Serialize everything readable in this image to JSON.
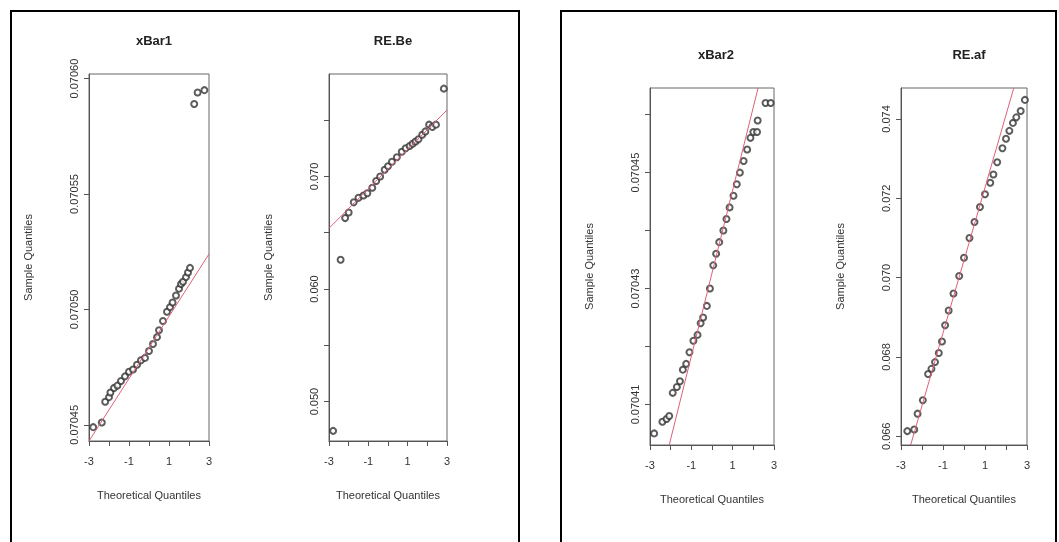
{
  "chart_data": [
    {
      "type": "scatter",
      "title": "xBar1",
      "xlabel": "Theoretical Quantiles",
      "ylabel": "Sample Quantiles",
      "grid": false,
      "xlim": [
        -3,
        3
      ],
      "xticks": [
        -3,
        {
          "value": -2,
          "label": null
        },
        -1,
        {
          "value": 0,
          "label": null
        },
        1,
        {
          "value": 2,
          "label": null
        },
        3
      ],
      "ylim": [
        0.070443,
        0.070602
      ],
      "yticks": [
        0.07045,
        {
          "value": 0.0705,
          "label": "0.07050"
        },
        0.07055,
        {
          "value": 0.0706,
          "label": "0.07060"
        }
      ],
      "series": [
        {
          "marker": "circle",
          "color": "#333333",
          "x": [
            -2.79,
            -2.36,
            -2.19,
            -2.0,
            -1.93,
            -1.75,
            -1.58,
            -1.4,
            -1.2,
            -1.0,
            -0.8,
            -0.6,
            -0.4,
            -0.2,
            0,
            0.2,
            0.4,
            0.5,
            0.7,
            0.9,
            1.05,
            1.18,
            1.35,
            1.5,
            1.6,
            1.7,
            1.85,
            1.95,
            2.05,
            2.26,
            2.43,
            2.77
          ],
          "values": [
            0.070449,
            0.070451,
            0.07046,
            0.070462,
            0.070464,
            0.070466,
            0.070467,
            0.070469,
            0.070471,
            0.070473,
            0.070474,
            0.070476,
            0.070478,
            0.070479,
            0.070482,
            0.070485,
            0.070488,
            0.070491,
            0.070495,
            0.070499,
            0.070501,
            0.070503,
            0.070506,
            0.070509,
            0.070511,
            0.070512,
            0.070514,
            0.070516,
            0.070518,
            0.070589,
            0.070594,
            0.070595
          ]
        },
        {
          "type": "line",
          "marker": "none",
          "color": "#e0607a",
          "x": [
            -3,
            3
          ],
          "values": [
            0.070443,
            0.070524
          ]
        }
      ]
    },
    {
      "type": "scatter",
      "title": "RE.Be",
      "xlabel": "Theoretical Quantiles",
      "ylabel": "Sample Quantiles",
      "grid": false,
      "xlim": [
        -3,
        3
      ],
      "xticks": [
        -3,
        {
          "value": -2,
          "label": null
        },
        -1,
        {
          "value": 0,
          "label": null
        },
        1,
        {
          "value": 2,
          "label": null
        },
        3
      ],
      "ylim": [
        0.0465,
        0.0791
      ],
      "yticks": [
        {
          "value": 0.05,
          "label": "0.050"
        },
        {
          "value": 0.055,
          "label": null
        },
        {
          "value": 0.06,
          "label": "0.060"
        },
        {
          "value": 0.065,
          "label": null
        },
        {
          "value": 0.07,
          "label": "0.070"
        },
        {
          "value": 0.075,
          "label": null
        }
      ],
      "series": [
        {
          "marker": "circle",
          "color": "#333333",
          "x": [
            -2.79,
            -2.41,
            -2.18,
            -2.0,
            -1.74,
            -1.5,
            -1.25,
            -1.05,
            -0.8,
            -0.6,
            -0.4,
            -0.17,
            0,
            0.2,
            0.45,
            0.7,
            0.9,
            1.1,
            1.25,
            1.4,
            1.55,
            1.74,
            1.9,
            2.09,
            2.25,
            2.44,
            2.84
          ],
          "values": [
            0.0474,
            0.0626,
            0.0663,
            0.0668,
            0.0677,
            0.0681,
            0.0683,
            0.0685,
            0.069,
            0.0696,
            0.07,
            0.0706,
            0.0709,
            0.0713,
            0.0717,
            0.0722,
            0.0725,
            0.0727,
            0.0729,
            0.0731,
            0.0733,
            0.0737,
            0.074,
            0.0746,
            0.0744,
            0.0746,
            0.0778
          ]
        },
        {
          "type": "line",
          "marker": "none",
          "color": "#e0607a",
          "x": [
            -3,
            3
          ],
          "values": [
            0.0654,
            0.0759
          ]
        }
      ]
    },
    {
      "type": "scatter",
      "title": "xBar2",
      "xlabel": "Theoretical Quantiles",
      "ylabel": "Sample Quantiles",
      "grid": false,
      "xlim": [
        -3,
        3
      ],
      "xticks": [
        -3,
        {
          "value": -2,
          "label": null
        },
        -1,
        {
          "value": 0,
          "label": null
        },
        1,
        {
          "value": 2,
          "label": null
        },
        3
      ],
      "ylim": [
        0.070403,
        0.0704646
      ],
      "yticks": [
        {
          "value": 0.07041,
          "label": "0.07041"
        },
        {
          "value": 0.07042,
          "label": null
        },
        {
          "value": 0.07043,
          "label": "0.07043"
        },
        {
          "value": 0.07044,
          "label": null
        },
        {
          "value": 0.07045,
          "label": "0.07045"
        },
        {
          "value": 0.07046,
          "label": null
        }
      ],
      "series": [
        {
          "marker": "circle",
          "color": "#333333",
          "x": [
            -2.8,
            -2.4,
            -2.2,
            -2.07,
            -1.9,
            -1.7,
            -1.55,
            -1.41,
            -1.25,
            -1.09,
            -0.9,
            -0.7,
            -0.55,
            -0.43,
            -0.25,
            -0.1,
            0.06,
            0.2,
            0.35,
            0.55,
            0.7,
            0.85,
            1.04,
            1.2,
            1.35,
            1.53,
            1.7,
            1.86,
            2.0,
            2.18,
            2.21,
            2.59,
            2.84
          ],
          "values": [
            0.070405,
            0.070407,
            0.0704075,
            0.070408,
            0.070412,
            0.070413,
            0.070414,
            0.070416,
            0.070417,
            0.070419,
            0.070421,
            0.070422,
            0.070424,
            0.070425,
            0.070427,
            0.07043,
            0.070434,
            0.070436,
            0.070438,
            0.07044,
            0.070442,
            0.070444,
            0.070446,
            0.070448,
            0.07045,
            0.070452,
            0.070454,
            0.070456,
            0.070457,
            0.070457,
            0.070459,
            0.070462,
            0.070462
          ]
        },
        {
          "type": "line",
          "marker": "none",
          "color": "#e0607a",
          "x": [
            -2.07,
            2.23
          ],
          "values": [
            0.070403,
            0.0704646
          ]
        }
      ]
    },
    {
      "type": "scatter",
      "title": "RE.af",
      "xlabel": "Theoretical Quantiles",
      "ylabel": "Sample Quantiles",
      "grid": false,
      "xlim": [
        -3,
        3
      ],
      "xticks": [
        -3,
        {
          "value": -2,
          "label": null
        },
        -1,
        {
          "value": 0,
          "label": null
        },
        1,
        {
          "value": 2,
          "label": null
        },
        3
      ],
      "ylim": [
        0.06578,
        0.07478
      ],
      "yticks": [
        {
          "value": 0.066,
          "label": "0.066"
        },
        {
          "value": 0.068,
          "label": "0.068"
        },
        {
          "value": 0.07,
          "label": "0.070"
        },
        {
          "value": 0.072,
          "label": "0.072"
        },
        {
          "value": 0.074,
          "label": "0.074"
        }
      ],
      "series": [
        {
          "marker": "circle",
          "color": "#333333",
          "x": [
            -2.7,
            -2.37,
            -2.21,
            -1.96,
            -1.71,
            -1.55,
            -1.38,
            -1.2,
            -1.05,
            -0.9,
            -0.73,
            -0.5,
            -0.23,
            0,
            0.26,
            0.5,
            0.76,
            1.0,
            1.25,
            1.4,
            1.58,
            1.83,
            2.0,
            2.16,
            2.33,
            2.49,
            2.7,
            2.9
          ],
          "values": [
            0.06613,
            0.06617,
            0.06657,
            0.06691,
            0.06757,
            0.0677,
            0.06787,
            0.0681,
            0.06839,
            0.0688,
            0.06917,
            0.0696,
            0.07004,
            0.0705,
            0.071,
            0.0714,
            0.07178,
            0.0721,
            0.07239,
            0.0726,
            0.07291,
            0.07326,
            0.0735,
            0.0737,
            0.0739,
            0.07404,
            0.0742,
            0.07448
          ]
        },
        {
          "type": "line",
          "marker": "none",
          "color": "#e0607a",
          "x": [
            -2.54,
            2.37
          ],
          "values": [
            0.06578,
            0.07478
          ]
        }
      ]
    }
  ]
}
